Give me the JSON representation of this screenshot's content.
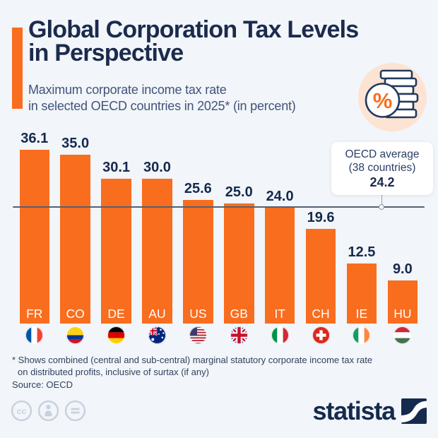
{
  "header": {
    "title_line1": "Global Corporation Tax Levels",
    "title_line2": "in Perspective",
    "subtitle_line1": "Maximum corporate income tax rate",
    "subtitle_line2": "in selected OECD countries in 2025* (in percent)",
    "accent_color": "#f96d1f",
    "header_icon": "percent-coins-icon"
  },
  "chart_data": {
    "type": "bar",
    "title": "Maximum corporate income tax rate in selected OECD countries in 2025 (in percent)",
    "categories": [
      "FR",
      "CO",
      "DE",
      "AU",
      "US",
      "GB",
      "IT",
      "CH",
      "IE",
      "HU"
    ],
    "values": [
      36.1,
      35.0,
      30.1,
      30.0,
      25.6,
      25.0,
      24.0,
      19.6,
      12.5,
      9.0
    ],
    "value_labels": [
      "36.1",
      "35.0",
      "30.1",
      "30.0",
      "25.6",
      "25.0",
      "24.0",
      "19.6",
      "12.5",
      "9.0"
    ],
    "flags": [
      "france",
      "colombia",
      "germany",
      "australia",
      "united-states",
      "united-kingdom",
      "italy",
      "switzerland",
      "ireland",
      "hungary"
    ],
    "bar_color": "#f96d1f",
    "label_color": "#15294e",
    "average_line": {
      "value": 24.2,
      "label_line1": "OECD average",
      "label_line2": "(38 countries)",
      "label_value": "24.2",
      "line_color": "#566070"
    },
    "ylim": [
      0,
      40
    ],
    "grid": false,
    "legend": false
  },
  "footer": {
    "footnote_line1": "* Shows combined (central and sub-central) marginal statutory corporate income tax rate",
    "footnote_line2": "on distributed profits, inclusive of surtax (if any)",
    "source": "Source: OECD",
    "brand": "statista",
    "license_icons": [
      "cc-icon",
      "attribution-icon",
      "no-derivatives-icon"
    ]
  }
}
